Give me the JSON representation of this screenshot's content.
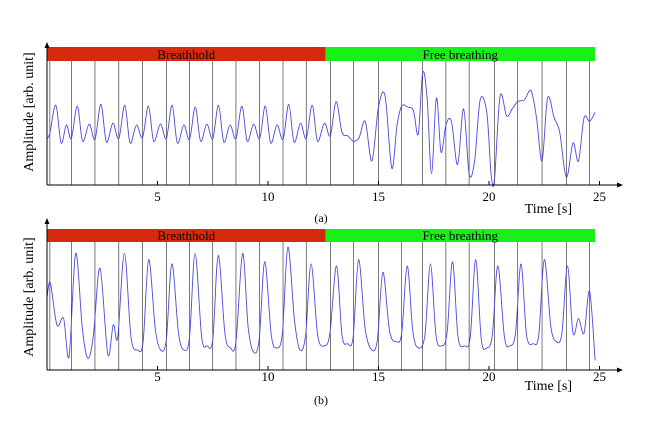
{
  "chart_data": [
    {
      "type": "line",
      "caption": "(a)",
      "xlabel": "Time [s]",
      "ylabel": "Amplitude [arb. unit]",
      "xlim": [
        0,
        25
      ],
      "xticks": [
        5,
        10,
        15,
        20,
        25
      ],
      "ytick_labels": false,
      "grid": false,
      "phases": [
        {
          "label": "Breathhold",
          "start": 0,
          "end": 12.6,
          "color": "#d62a0e"
        },
        {
          "label": "Free breathing",
          "start": 12.6,
          "end": 24.8,
          "color": "#19f019"
        }
      ],
      "markers_x": [
        0.13,
        1.1,
        2.17,
        3.25,
        4.32,
        5.4,
        6.45,
        7.5,
        8.55,
        9.62,
        10.68,
        11.73,
        12.82,
        13.87,
        15.0,
        16.05,
        17.0,
        18.05,
        19.1,
        20.25,
        21.3,
        22.4,
        23.5,
        24.55
      ],
      "series": [
        {
          "color": "#4a4ae0",
          "x": [
            0.0,
            0.13,
            0.4,
            0.64,
            0.88,
            1.1,
            1.37,
            1.61,
            1.91,
            2.17,
            2.44,
            2.69,
            2.98,
            3.25,
            3.52,
            3.76,
            4.05,
            4.32,
            4.59,
            4.83,
            5.13,
            5.4,
            5.66,
            5.9,
            6.19,
            6.45,
            6.71,
            6.95,
            7.23,
            7.5,
            7.76,
            8.0,
            8.28,
            8.55,
            8.82,
            9.06,
            9.35,
            9.62,
            9.88,
            10.12,
            10.41,
            10.68,
            10.94,
            11.18,
            11.47,
            11.73,
            12.0,
            12.24,
            12.55,
            12.82,
            13.08,
            13.35,
            13.6,
            13.87,
            14.12,
            14.4,
            14.7,
            15.0,
            15.3,
            15.6,
            15.84,
            16.05,
            16.32,
            16.58,
            16.8,
            17.0,
            17.2,
            17.4,
            17.62,
            17.83,
            18.05,
            18.3,
            18.58,
            18.85,
            19.1,
            19.35,
            19.6,
            19.9,
            20.1,
            20.25,
            20.5,
            20.8,
            21.05,
            21.3,
            21.6,
            21.9,
            22.15,
            22.4,
            22.65,
            22.95,
            23.2,
            23.5,
            23.8,
            24.05,
            24.3,
            24.55,
            24.8
          ],
          "y": [
            -0.75,
            -0.45,
            1.1,
            -1.0,
            0.0,
            -0.75,
            1.05,
            -0.9,
            0.05,
            -0.8,
            1.15,
            -0.95,
            0.1,
            -0.75,
            1.1,
            -1.0,
            0.0,
            -0.7,
            1.05,
            -0.9,
            0.05,
            -0.75,
            1.1,
            -1.0,
            0.0,
            -0.8,
            1.0,
            -0.9,
            0.05,
            -0.75,
            1.1,
            -0.95,
            0.0,
            -0.75,
            1.05,
            -0.9,
            0.05,
            -0.75,
            1.05,
            -1.0,
            0.0,
            -0.8,
            1.15,
            -0.95,
            0.1,
            -0.75,
            1.1,
            -0.9,
            0.1,
            -0.6,
            1.3,
            -0.4,
            -0.6,
            -0.9,
            -0.7,
            0.2,
            -2.0,
            1.0,
            1.6,
            -2.4,
            0.0,
            1.05,
            1.0,
            0.8,
            -0.5,
            2.9,
            1.5,
            -2.7,
            1.5,
            -1.5,
            0.0,
            0.2,
            -2.2,
            0.9,
            -2.7,
            -2.0,
            1.4,
            0.7,
            -2.8,
            -3.0,
            1.6,
            0.5,
            0.9,
            1.3,
            1.4,
            1.9,
            0.4,
            -2.0,
            1.5,
            0.4,
            -0.4,
            -2.9,
            -1.0,
            -2.0,
            0.4,
            0.2,
            0.7
          ]
        }
      ]
    },
    {
      "type": "line",
      "caption": "(b)",
      "xlabel": "Time [s]",
      "ylabel": "Amplitude [arb. unit]",
      "xlim": [
        0,
        25
      ],
      "xticks": [
        5,
        10,
        15,
        20,
        25
      ],
      "ytick_labels": false,
      "grid": false,
      "phases": [
        {
          "label": "Breathhold",
          "start": 0,
          "end": 12.6,
          "color": "#d62a0e"
        },
        {
          "label": "Free breathing",
          "start": 12.6,
          "end": 24.8,
          "color": "#19f019"
        }
      ],
      "markers_x": [
        0.13,
        1.1,
        2.17,
        3.25,
        4.32,
        5.4,
        6.45,
        7.5,
        8.55,
        9.62,
        10.68,
        11.73,
        12.82,
        13.87,
        15.0,
        16.05,
        17.0,
        18.05,
        19.1,
        20.25,
        21.3,
        22.4,
        23.5,
        24.55
      ],
      "series": [
        {
          "color": "#4a4ae0",
          "x": [
            0.0,
            0.15,
            0.45,
            0.75,
            1.0,
            1.3,
            1.6,
            1.85,
            2.1,
            2.4,
            2.75,
            3.0,
            3.2,
            3.5,
            3.8,
            4.1,
            4.35,
            4.6,
            4.9,
            5.15,
            5.4,
            5.65,
            5.95,
            6.2,
            6.45,
            6.7,
            7.0,
            7.25,
            7.5,
            7.75,
            8.05,
            8.3,
            8.55,
            8.85,
            9.1,
            9.35,
            9.6,
            9.85,
            10.15,
            10.4,
            10.65,
            10.9,
            11.2,
            11.45,
            11.7,
            11.95,
            12.25,
            12.55,
            12.8,
            13.1,
            13.35,
            13.6,
            13.85,
            14.1,
            14.4,
            14.7,
            14.95,
            15.2,
            15.5,
            15.8,
            16.05,
            16.3,
            16.55,
            16.8,
            17.1,
            17.35,
            17.6,
            17.85,
            18.1,
            18.35,
            18.6,
            18.9,
            19.15,
            19.4,
            19.65,
            19.9,
            20.15,
            20.4,
            20.7,
            20.95,
            21.2,
            21.45,
            21.7,
            22.0,
            22.25,
            22.5,
            22.8,
            23.05,
            23.3,
            23.55,
            23.8,
            24.05,
            24.3,
            24.55,
            24.8
          ],
          "y": [
            0.5,
            1.2,
            -0.8,
            -0.5,
            -2.3,
            2.6,
            -1.0,
            -2.4,
            -1.3,
            1.9,
            -2.2,
            -0.8,
            -1.4,
            2.6,
            -1.4,
            -2.0,
            -1.6,
            2.3,
            -1.0,
            -2.0,
            -1.5,
            2.1,
            -1.2,
            -2.0,
            -1.4,
            2.6,
            -1.4,
            -1.8,
            -1.5,
            2.5,
            -1.2,
            -1.9,
            -1.6,
            2.6,
            -0.9,
            -2.1,
            -1.5,
            2.2,
            -1.3,
            -1.9,
            -1.2,
            2.9,
            -0.6,
            -2.0,
            -1.3,
            2.1,
            -1.3,
            -1.8,
            -1.2,
            2.0,
            -1.3,
            -1.7,
            -1.4,
            2.3,
            -1.0,
            -2.0,
            -1.5,
            1.7,
            -1.1,
            -1.6,
            -1.2,
            2.0,
            -1.1,
            -1.9,
            -1.3,
            2.1,
            -1.3,
            -1.8,
            -1.2,
            2.2,
            -1.4,
            -1.8,
            -1.4,
            2.3,
            -1.5,
            -1.9,
            -1.3,
            2.0,
            -1.4,
            -1.8,
            -1.2,
            2.1,
            -1.3,
            -1.7,
            -1.3,
            2.3,
            -0.9,
            -1.6,
            -1.2,
            2.0,
            -1.2,
            -0.5,
            -1.2,
            0.8,
            -2.5
          ]
        }
      ]
    }
  ]
}
